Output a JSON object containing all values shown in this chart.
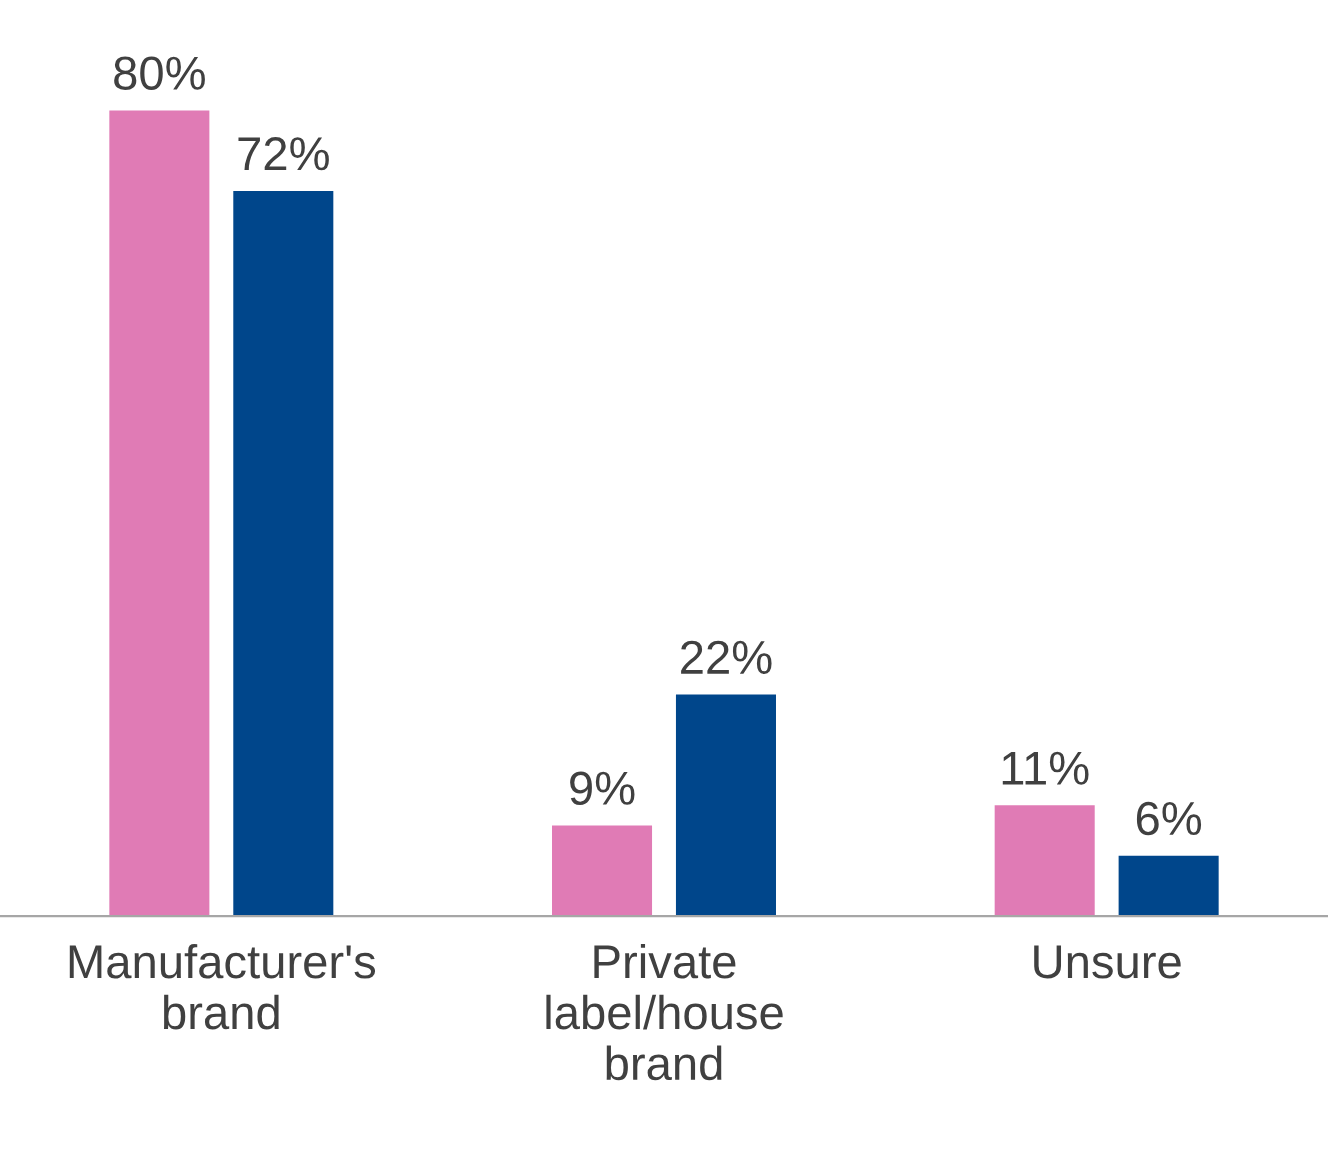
{
  "chart_data": {
    "type": "bar",
    "categories": [
      "Manufacturer's\nbrand",
      "Private\nlabel/house\nbrand",
      "Unsure"
    ],
    "series": [
      {
        "color": "#e07bb5",
        "values": [
          80,
          9,
          11
        ],
        "value_labels": [
          "80%",
          "9%",
          "11%"
        ]
      },
      {
        "color": "#00468b",
        "values": [
          72,
          22,
          6
        ],
        "value_labels": [
          "72%",
          "22%",
          "6%"
        ]
      }
    ],
    "grid": false,
    "legend": false
  }
}
